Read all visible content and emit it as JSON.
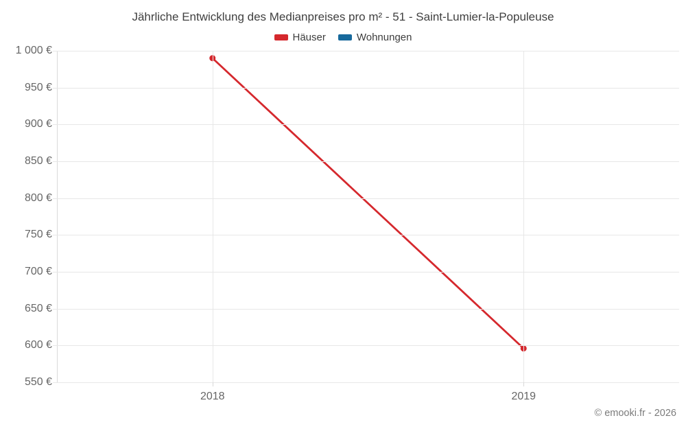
{
  "header": {
    "title": "Jährliche Entwicklung des Medianpreises pro m² - 51 - Saint-Lumier-la-Populeuse"
  },
  "footer": {
    "copyright": "© emooki.fr - 2026"
  },
  "chart_data": {
    "type": "line",
    "title": "Jährliche Entwicklung des Medianpreises pro m² - 51 - Saint-Lumier-la-Populeuse",
    "categories": [
      "2018",
      "2019"
    ],
    "series": [
      {
        "name": "Häuser",
        "color": "#d5282d",
        "values": [
          990,
          596
        ]
      },
      {
        "name": "Wohnungen",
        "color": "#17699c",
        "values": []
      }
    ],
    "xlabel": "",
    "ylabel": "",
    "ylim": [
      550,
      1000
    ],
    "ytick_step": 50,
    "ytick_suffix": " €",
    "ytick_labels": [
      "1 000 €",
      "950 €",
      "900 €",
      "850 €",
      "800 €",
      "750 €",
      "700 €",
      "650 €",
      "600 €",
      "550 €"
    ],
    "grid": true,
    "legend_position": "top",
    "colors": {
      "grid": "#e7e7e7",
      "axis": "#dadada",
      "title_text": "#3f3f3f",
      "label_text": "#666666",
      "legend_text": "#3d3d3d",
      "copyright_text": "#7b7b7b",
      "background": "#ffffff"
    }
  }
}
